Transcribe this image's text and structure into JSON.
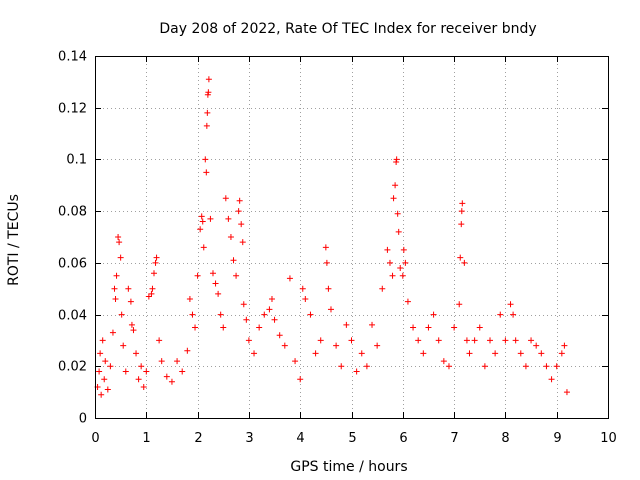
{
  "chart_data": {
    "type": "scatter",
    "title": "Day 208 of 2022, Rate Of TEC Index for receiver bndy",
    "xlabel": "GPS time / hours",
    "ylabel": "ROTI / TECUs",
    "xlim": [
      0,
      10
    ],
    "ylim": [
      0,
      0.14
    ],
    "x_ticks": [
      "0",
      "1",
      "2",
      "3",
      "4",
      "5",
      "6",
      "7",
      "8",
      "9",
      "10"
    ],
    "y_ticks": [
      "0",
      "0.02",
      "0.04",
      "0.06",
      "0.08",
      "0.1",
      "0.12",
      "0.14"
    ],
    "grid": true,
    "marker": "+",
    "color": "#ff0000",
    "series": [
      {
        "name": "ROTI",
        "points": [
          [
            0.05,
            0.012
          ],
          [
            0.08,
            0.018
          ],
          [
            0.1,
            0.025
          ],
          [
            0.12,
            0.009
          ],
          [
            0.15,
            0.03
          ],
          [
            0.18,
            0.015
          ],
          [
            0.2,
            0.022
          ],
          [
            0.25,
            0.011
          ],
          [
            0.3,
            0.02
          ],
          [
            0.35,
            0.033
          ],
          [
            0.38,
            0.05
          ],
          [
            0.4,
            0.046
          ],
          [
            0.42,
            0.055
          ],
          [
            0.45,
            0.07
          ],
          [
            0.47,
            0.068
          ],
          [
            0.5,
            0.062
          ],
          [
            0.52,
            0.04
          ],
          [
            0.55,
            0.028
          ],
          [
            0.6,
            0.018
          ],
          [
            0.65,
            0.05
          ],
          [
            0.7,
            0.045
          ],
          [
            0.72,
            0.036
          ],
          [
            0.75,
            0.034
          ],
          [
            0.8,
            0.025
          ],
          [
            0.85,
            0.015
          ],
          [
            0.9,
            0.02
          ],
          [
            0.95,
            0.012
          ],
          [
            1.0,
            0.018
          ],
          [
            1.05,
            0.047
          ],
          [
            1.1,
            0.048
          ],
          [
            1.12,
            0.05
          ],
          [
            1.15,
            0.056
          ],
          [
            1.18,
            0.06
          ],
          [
            1.2,
            0.062
          ],
          [
            1.25,
            0.03
          ],
          [
            1.3,
            0.022
          ],
          [
            1.4,
            0.016
          ],
          [
            1.5,
            0.014
          ],
          [
            1.6,
            0.022
          ],
          [
            1.7,
            0.018
          ],
          [
            1.8,
            0.026
          ],
          [
            1.85,
            0.046
          ],
          [
            1.9,
            0.04
          ],
          [
            1.95,
            0.035
          ],
          [
            2.0,
            0.055
          ],
          [
            2.05,
            0.073
          ],
          [
            2.08,
            0.078
          ],
          [
            2.1,
            0.076
          ],
          [
            2.12,
            0.066
          ],
          [
            2.15,
            0.1
          ],
          [
            2.17,
            0.095
          ],
          [
            2.18,
            0.113
          ],
          [
            2.19,
            0.118
          ],
          [
            2.2,
            0.125
          ],
          [
            2.21,
            0.126
          ],
          [
            2.22,
            0.131
          ],
          [
            2.25,
            0.077
          ],
          [
            2.3,
            0.056
          ],
          [
            2.35,
            0.052
          ],
          [
            2.4,
            0.048
          ],
          [
            2.45,
            0.04
          ],
          [
            2.5,
            0.035
          ],
          [
            2.55,
            0.085
          ],
          [
            2.6,
            0.077
          ],
          [
            2.65,
            0.07
          ],
          [
            2.7,
            0.061
          ],
          [
            2.75,
            0.055
          ],
          [
            2.8,
            0.08
          ],
          [
            2.82,
            0.084
          ],
          [
            2.85,
            0.075
          ],
          [
            2.88,
            0.068
          ],
          [
            2.9,
            0.044
          ],
          [
            2.95,
            0.038
          ],
          [
            3.0,
            0.03
          ],
          [
            3.1,
            0.025
          ],
          [
            3.2,
            0.035
          ],
          [
            3.3,
            0.04
          ],
          [
            3.4,
            0.042
          ],
          [
            3.45,
            0.046
          ],
          [
            3.5,
            0.038
          ],
          [
            3.6,
            0.032
          ],
          [
            3.7,
            0.028
          ],
          [
            3.8,
            0.054
          ],
          [
            3.9,
            0.022
          ],
          [
            4.0,
            0.015
          ],
          [
            4.05,
            0.05
          ],
          [
            4.1,
            0.046
          ],
          [
            4.2,
            0.04
          ],
          [
            4.3,
            0.025
          ],
          [
            4.4,
            0.03
          ],
          [
            4.5,
            0.066
          ],
          [
            4.52,
            0.06
          ],
          [
            4.55,
            0.05
          ],
          [
            4.6,
            0.042
          ],
          [
            4.7,
            0.028
          ],
          [
            4.8,
            0.02
          ],
          [
            4.9,
            0.036
          ],
          [
            5.0,
            0.03
          ],
          [
            5.1,
            0.018
          ],
          [
            5.2,
            0.025
          ],
          [
            5.3,
            0.02
          ],
          [
            5.4,
            0.036
          ],
          [
            5.5,
            0.028
          ],
          [
            5.6,
            0.05
          ],
          [
            5.7,
            0.065
          ],
          [
            5.75,
            0.06
          ],
          [
            5.8,
            0.055
          ],
          [
            5.82,
            0.085
          ],
          [
            5.85,
            0.09
          ],
          [
            5.87,
            0.099
          ],
          [
            5.88,
            0.1
          ],
          [
            5.9,
            0.079
          ],
          [
            5.92,
            0.072
          ],
          [
            5.95,
            0.058
          ],
          [
            6.0,
            0.055
          ],
          [
            6.02,
            0.065
          ],
          [
            6.05,
            0.06
          ],
          [
            6.1,
            0.045
          ],
          [
            6.2,
            0.035
          ],
          [
            6.3,
            0.03
          ],
          [
            6.4,
            0.025
          ],
          [
            6.5,
            0.035
          ],
          [
            6.6,
            0.04
          ],
          [
            6.7,
            0.03
          ],
          [
            6.8,
            0.022
          ],
          [
            6.9,
            0.02
          ],
          [
            7.0,
            0.035
          ],
          [
            7.1,
            0.044
          ],
          [
            7.12,
            0.062
          ],
          [
            7.14,
            0.075
          ],
          [
            7.15,
            0.08
          ],
          [
            7.16,
            0.083
          ],
          [
            7.2,
            0.06
          ],
          [
            7.25,
            0.03
          ],
          [
            7.3,
            0.025
          ],
          [
            7.4,
            0.03
          ],
          [
            7.5,
            0.035
          ],
          [
            7.6,
            0.02
          ],
          [
            7.7,
            0.03
          ],
          [
            7.8,
            0.025
          ],
          [
            7.9,
            0.04
          ],
          [
            8.0,
            0.03
          ],
          [
            8.1,
            0.044
          ],
          [
            8.15,
            0.04
          ],
          [
            8.2,
            0.03
          ],
          [
            8.3,
            0.025
          ],
          [
            8.4,
            0.02
          ],
          [
            8.5,
            0.03
          ],
          [
            8.6,
            0.028
          ],
          [
            8.7,
            0.025
          ],
          [
            8.8,
            0.02
          ],
          [
            8.9,
            0.015
          ],
          [
            9.0,
            0.02
          ],
          [
            9.1,
            0.025
          ],
          [
            9.15,
            0.028
          ],
          [
            9.2,
            0.01
          ]
        ]
      }
    ]
  }
}
